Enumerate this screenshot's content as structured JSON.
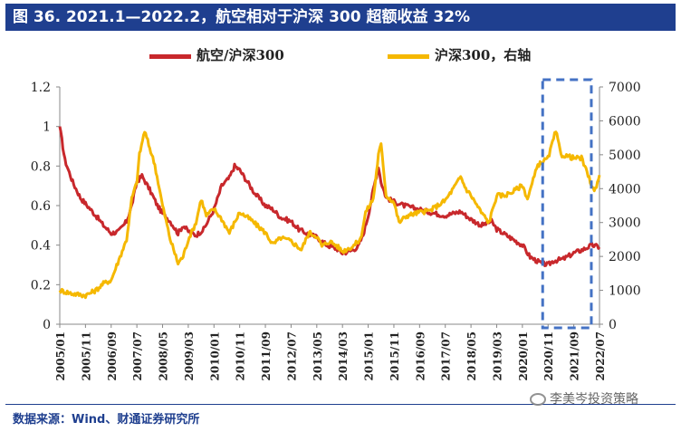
{
  "title": "图 36. 2021.1—2022.2，航空相对于沪深 300 超额收益 32%",
  "source": "数据来源：Wind、财通证券研究所",
  "watermark": "李美岑投资策略",
  "colors": {
    "title_bg": "#1f3f8f",
    "series_red": "#c8282c",
    "series_gold": "#f5b800",
    "highlight_box": "#4472c4"
  },
  "chart_data": {
    "type": "line",
    "title": "",
    "x": [
      "2005/01",
      "2005/11",
      "2006/09",
      "2007/07",
      "2008/05",
      "2009/03",
      "2010/01",
      "2010/11",
      "2011/09",
      "2012/07",
      "2013/05",
      "2014/03",
      "2015/01",
      "2015/11",
      "2016/09",
      "2017/07",
      "2018/05",
      "2019/03",
      "2020/01",
      "2020/11",
      "2021/09",
      "2022/07"
    ],
    "left_axis": {
      "ylim": [
        0,
        1.2
      ],
      "ticks": [
        "0",
        "0.2",
        "0.4",
        "0.6",
        "0.8",
        "1",
        "1.2"
      ]
    },
    "right_axis": {
      "ylim": [
        0,
        7000
      ],
      "ticks": [
        "0",
        "1000",
        "2000",
        "3000",
        "4000",
        "5000",
        "6000",
        "7000"
      ]
    },
    "highlight": {
      "from": "2020/11",
      "to": "2022/01"
    },
    "series": [
      {
        "name": "航空/沪深300",
        "axis": "left",
        "color": "#c8282c",
        "points": [
          [
            "2005/01",
            1.0
          ],
          [
            "2005/03",
            0.83
          ],
          [
            "2005/06",
            0.72
          ],
          [
            "2005/09",
            0.64
          ],
          [
            "2005/11",
            0.61
          ],
          [
            "2006/03",
            0.55
          ],
          [
            "2006/06",
            0.5
          ],
          [
            "2006/09",
            0.46
          ],
          [
            "2006/12",
            0.47
          ],
          [
            "2007/03",
            0.52
          ],
          [
            "2007/05",
            0.6
          ],
          [
            "2007/07",
            0.72
          ],
          [
            "2007/09",
            0.75
          ],
          [
            "2007/12",
            0.68
          ],
          [
            "2008/03",
            0.6
          ],
          [
            "2008/05",
            0.56
          ],
          [
            "2008/08",
            0.52
          ],
          [
            "2008/11",
            0.46
          ],
          [
            "2009/01",
            0.5
          ],
          [
            "2009/03",
            0.47
          ],
          [
            "2009/06",
            0.45
          ],
          [
            "2009/09",
            0.48
          ],
          [
            "2010/01",
            0.58
          ],
          [
            "2010/04",
            0.7
          ],
          [
            "2010/07",
            0.74
          ],
          [
            "2010/09",
            0.8
          ],
          [
            "2010/11",
            0.78
          ],
          [
            "2011/02",
            0.72
          ],
          [
            "2011/05",
            0.66
          ],
          [
            "2011/09",
            0.6
          ],
          [
            "2011/12",
            0.58
          ],
          [
            "2012/03",
            0.54
          ],
          [
            "2012/07",
            0.52
          ],
          [
            "2012/10",
            0.48
          ],
          [
            "2013/01",
            0.46
          ],
          [
            "2013/05",
            0.44
          ],
          [
            "2013/09",
            0.4
          ],
          [
            "2014/01",
            0.38
          ],
          [
            "2014/03",
            0.36
          ],
          [
            "2014/06",
            0.37
          ],
          [
            "2014/09",
            0.39
          ],
          [
            "2014/11",
            0.45
          ],
          [
            "2015/01",
            0.55
          ],
          [
            "2015/03",
            0.68
          ],
          [
            "2015/05",
            0.8
          ],
          [
            "2015/06",
            0.72
          ],
          [
            "2015/08",
            0.64
          ],
          [
            "2015/11",
            0.62
          ],
          [
            "2016/03",
            0.6
          ],
          [
            "2016/09",
            0.58
          ],
          [
            "2017/03",
            0.56
          ],
          [
            "2017/07",
            0.55
          ],
          [
            "2017/10",
            0.56
          ],
          [
            "2018/01",
            0.57
          ],
          [
            "2018/05",
            0.53
          ],
          [
            "2018/09",
            0.5
          ],
          [
            "2019/01",
            0.52
          ],
          [
            "2019/03",
            0.48
          ],
          [
            "2019/08",
            0.44
          ],
          [
            "2020/01",
            0.4
          ],
          [
            "2020/04",
            0.34
          ],
          [
            "2020/08",
            0.31
          ],
          [
            "2020/11",
            0.3
          ],
          [
            "2021/01",
            0.32
          ],
          [
            "2021/05",
            0.33
          ],
          [
            "2021/09",
            0.36
          ],
          [
            "2022/01",
            0.38
          ],
          [
            "2022/04",
            0.4
          ],
          [
            "2022/07",
            0.39
          ]
        ]
      },
      {
        "name": "沪深300，右轴",
        "axis": "right",
        "color": "#f5b800",
        "points": [
          [
            "2005/01",
            1000
          ],
          [
            "2005/06",
            900
          ],
          [
            "2005/11",
            850
          ],
          [
            "2006/03",
            1000
          ],
          [
            "2006/06",
            1200
          ],
          [
            "2006/09",
            1300
          ],
          [
            "2006/12",
            1900
          ],
          [
            "2007/03",
            2500
          ],
          [
            "2007/05",
            3700
          ],
          [
            "2007/07",
            4200
          ],
          [
            "2007/08",
            5000
          ],
          [
            "2007/10",
            5700
          ],
          [
            "2007/12",
            5200
          ],
          [
            "2008/02",
            4700
          ],
          [
            "2008/05",
            3500
          ],
          [
            "2008/08",
            2500
          ],
          [
            "2008/11",
            1800
          ],
          [
            "2009/01",
            2000
          ],
          [
            "2009/03",
            2500
          ],
          [
            "2009/06",
            3000
          ],
          [
            "2009/08",
            3700
          ],
          [
            "2009/10",
            3200
          ],
          [
            "2010/01",
            3400
          ],
          [
            "2010/04",
            3100
          ],
          [
            "2010/07",
            2700
          ],
          [
            "2010/11",
            3300
          ],
          [
            "2011/03",
            3100
          ],
          [
            "2011/06",
            2900
          ],
          [
            "2011/09",
            2700
          ],
          [
            "2011/12",
            2350
          ],
          [
            "2012/03",
            2550
          ],
          [
            "2012/07",
            2450
          ],
          [
            "2012/11",
            2200
          ],
          [
            "2013/02",
            2700
          ],
          [
            "2013/05",
            2600
          ],
          [
            "2013/07",
            2300
          ],
          [
            "2013/10",
            2450
          ],
          [
            "2014/01",
            2300
          ],
          [
            "2014/03",
            2150
          ],
          [
            "2014/07",
            2300
          ],
          [
            "2014/10",
            2500
          ],
          [
            "2014/12",
            3300
          ],
          [
            "2015/03",
            3700
          ],
          [
            "2015/05",
            5000
          ],
          [
            "2015/06",
            5300
          ],
          [
            "2015/08",
            3800
          ],
          [
            "2015/11",
            3600
          ],
          [
            "2016/01",
            3000
          ],
          [
            "2016/04",
            3200
          ],
          [
            "2016/09",
            3300
          ],
          [
            "2017/01",
            3350
          ],
          [
            "2017/07",
            3650
          ],
          [
            "2017/11",
            4100
          ],
          [
            "2018/01",
            4350
          ],
          [
            "2018/03",
            4000
          ],
          [
            "2018/05",
            3800
          ],
          [
            "2018/09",
            3300
          ],
          [
            "2018/12",
            3000
          ],
          [
            "2019/03",
            3800
          ],
          [
            "2019/06",
            3800
          ],
          [
            "2019/09",
            3900
          ],
          [
            "2020/01",
            4100
          ],
          [
            "2020/03",
            3700
          ],
          [
            "2020/07",
            4700
          ],
          [
            "2020/11",
            4900
          ],
          [
            "2021/02",
            5700
          ],
          [
            "2021/04",
            5000
          ],
          [
            "2021/07",
            4950
          ],
          [
            "2021/09",
            4900
          ],
          [
            "2021/12",
            4900
          ],
          [
            "2022/03",
            4300
          ],
          [
            "2022/05",
            3900
          ],
          [
            "2022/07",
            4400
          ]
        ]
      }
    ]
  }
}
